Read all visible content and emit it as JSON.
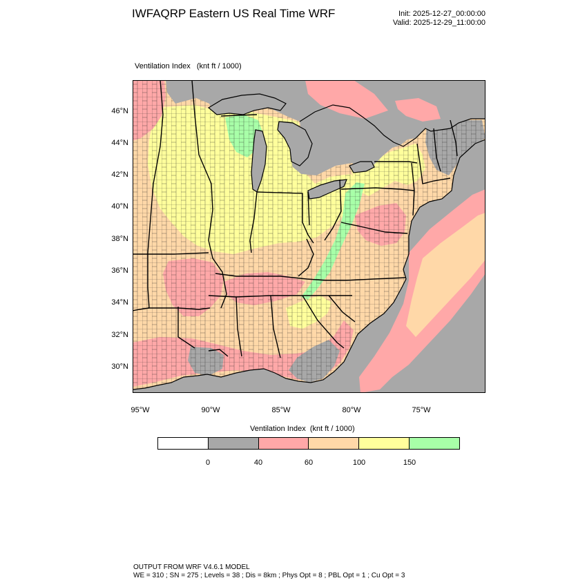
{
  "title": "IWFAQRP Eastern US Real Time WRF",
  "init_time": "Init: 2025-12-27_00:00:00",
  "valid_time": "Valid: 2025-12-29_11:00:00",
  "field_label": "Ventilation Index   (knt ft / 1000)",
  "lat_labels": [
    "46°N",
    "44°N",
    "42°N",
    "40°N",
    "38°N",
    "36°N",
    "34°N",
    "32°N",
    "30°N"
  ],
  "lon_labels": [
    "95°W",
    "90°W",
    "85°W",
    "80°W",
    "75°W"
  ],
  "legend": {
    "title": "Ventilation Index  (knt ft / 1000)",
    "thresholds": [
      "0",
      "40",
      "60",
      "100",
      "150"
    ],
    "colors": [
      "#ffffff",
      "#a8a8a8",
      "#ffa8a8",
      "#ffd8a8",
      "#ffff9c",
      "#a8ffa8"
    ]
  },
  "footer": {
    "line1": "OUTPUT FROM WRF V4.6.1 MODEL",
    "line2": "WE = 310 ; SN = 275 ; Levels = 38 ; Dis = 8km ; Phys Opt = 8 ; PBL Opt = 1 ; Cu Opt = 3"
  }
}
